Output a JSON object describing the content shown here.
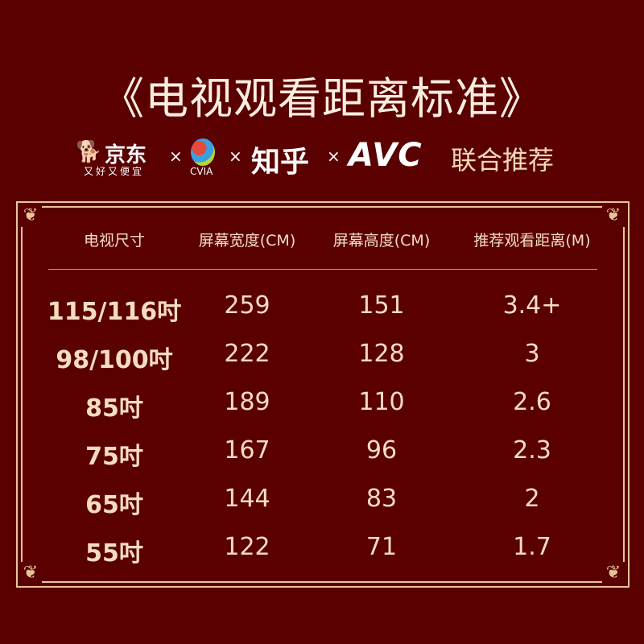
{
  "title": "《电视观看距离标准》",
  "logos": {
    "jd_name": "京东",
    "jd_slogan": "又好又便宜",
    "cvia": "CVIA",
    "zhihu": "知乎",
    "avc": "AVC",
    "separator": "×",
    "joint_label": "联合推荐"
  },
  "table": {
    "headers": [
      "电视尺寸",
      "屏幕宽度(CM)",
      "屏幕高度(CM)",
      "推荐观看距离(M)"
    ],
    "rows": [
      [
        "115/116吋",
        "259",
        "151",
        "3.4+"
      ],
      [
        "98/100吋",
        "222",
        "128",
        "3"
      ],
      [
        "85吋",
        "189",
        "110",
        "2.6"
      ],
      [
        "75吋",
        "167",
        "96",
        "2.3"
      ],
      [
        "65吋",
        "144",
        "83",
        "2"
      ],
      [
        "55吋",
        "122",
        "71",
        "1.7"
      ]
    ]
  },
  "colors": {
    "background": "#5a0000",
    "text": "#f6dcc0",
    "border": "#e8c49a"
  }
}
